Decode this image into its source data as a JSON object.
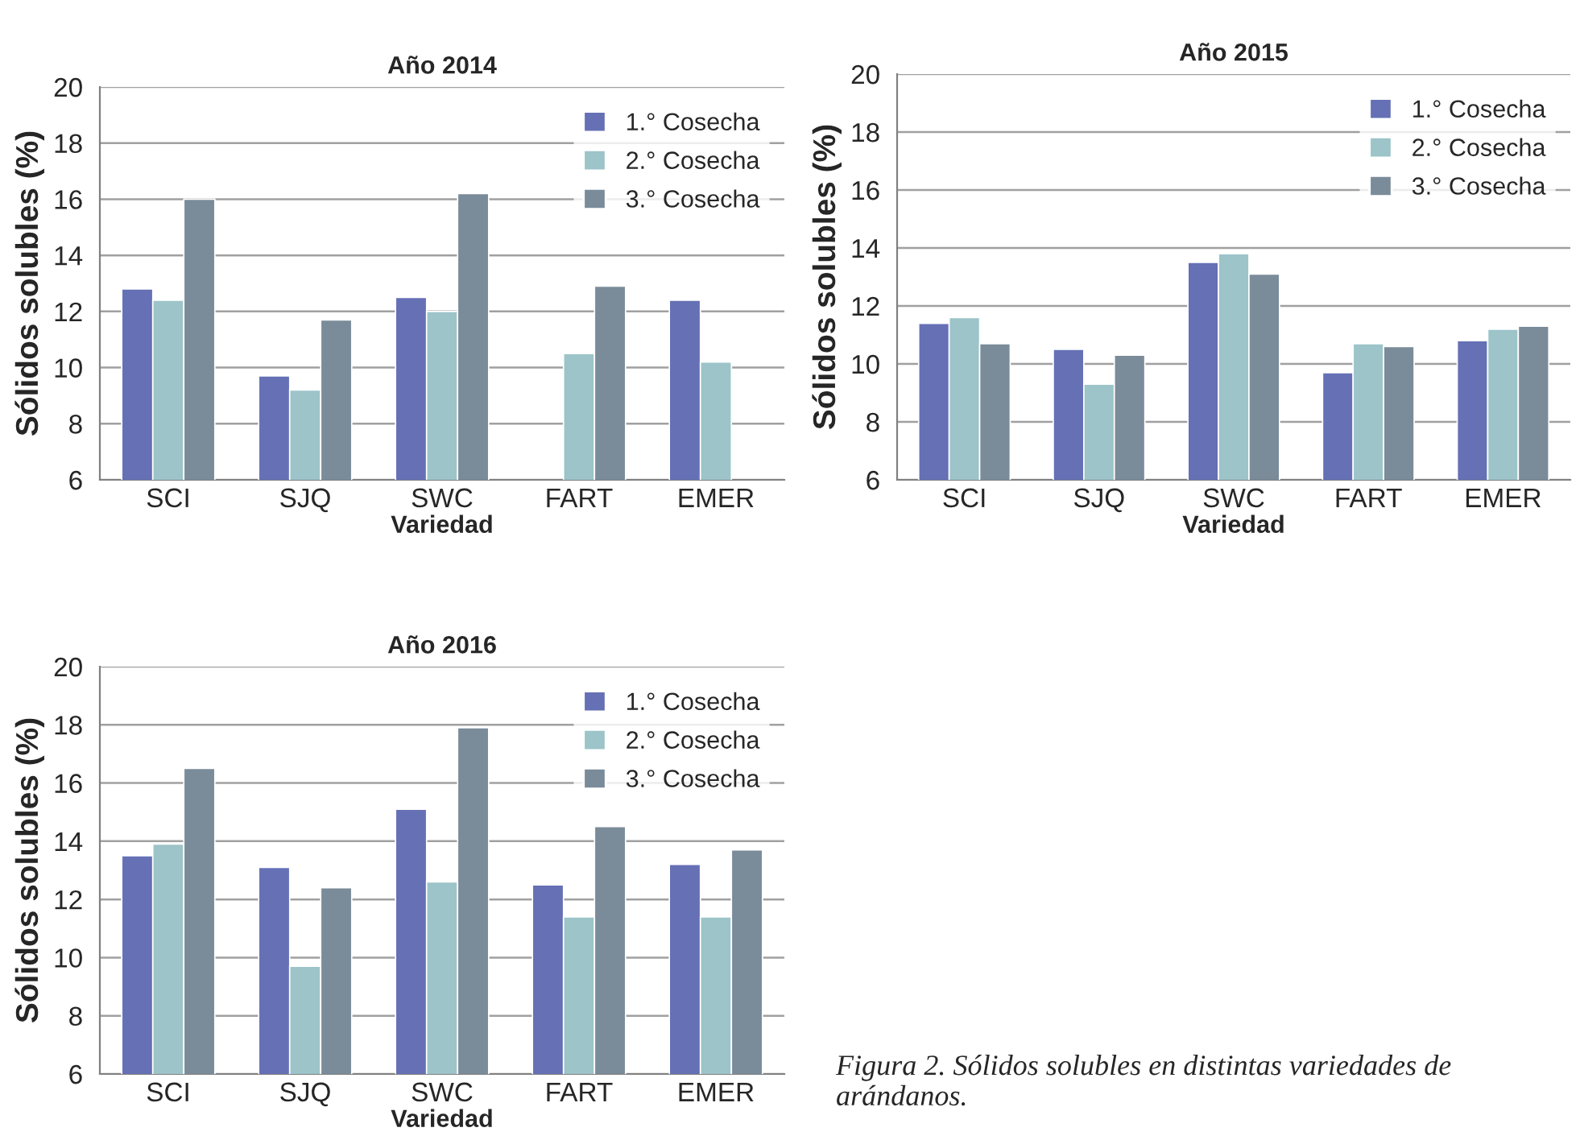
{
  "chart_data": [
    {
      "type": "bar",
      "title": "Año 2014",
      "xlabel": "Variedad",
      "ylabel": "Sólidos solubles (%)",
      "categories": [
        "SCI",
        "SJQ",
        "SWC",
        "FART",
        "EMER"
      ],
      "ylim": [
        6,
        20
      ],
      "yticks": [
        6,
        8,
        10,
        12,
        14,
        16,
        18,
        20
      ],
      "grid": "y",
      "legend": "top right",
      "series": [
        {
          "name": "1.° Cosecha",
          "color": "#6570b5",
          "values": [
            12.8,
            9.7,
            12.5,
            null,
            12.4
          ]
        },
        {
          "name": "2.° Cosecha",
          "color": "#9cc4c9",
          "values": [
            12.4,
            9.2,
            12.0,
            10.5,
            10.2
          ]
        },
        {
          "name": "3.° Cosecha",
          "color": "#7a8b99",
          "values": [
            16.0,
            11.7,
            16.2,
            12.9,
            null
          ]
        }
      ]
    },
    {
      "type": "bar",
      "title": "Año 2015",
      "xlabel": "Variedad",
      "ylabel": "Sólidos solubles (%)",
      "categories": [
        "SCI",
        "SJQ",
        "SWC",
        "FART",
        "EMER"
      ],
      "ylim": [
        6,
        20
      ],
      "yticks": [
        6,
        8,
        10,
        12,
        14,
        16,
        18,
        20
      ],
      "grid": "y",
      "legend": "top right",
      "series": [
        {
          "name": "1.° Cosecha",
          "color": "#6570b5",
          "values": [
            11.4,
            10.5,
            13.5,
            9.7,
            10.8
          ]
        },
        {
          "name": "2.° Cosecha",
          "color": "#9cc4c9",
          "values": [
            11.6,
            9.3,
            13.8,
            10.7,
            11.2
          ]
        },
        {
          "name": "3.° Cosecha",
          "color": "#7a8b99",
          "values": [
            10.7,
            10.3,
            13.1,
            10.6,
            11.3
          ]
        }
      ]
    },
    {
      "type": "bar",
      "title": "Año 2016",
      "xlabel": "Variedad",
      "ylabel": "Sólidos solubles (%)",
      "categories": [
        "SCI",
        "SJQ",
        "SWC",
        "FART",
        "EMER"
      ],
      "ylim": [
        6,
        20
      ],
      "yticks": [
        6,
        8,
        10,
        12,
        14,
        16,
        18,
        20
      ],
      "grid": "y",
      "legend": "top right",
      "annotations": [
        "Figura 2. Sólidos solubles en distintas variedades de arándanos."
      ],
      "series": [
        {
          "name": "1.° Cosecha",
          "color": "#6570b5",
          "values": [
            13.5,
            13.1,
            15.1,
            12.5,
            13.2
          ]
        },
        {
          "name": "2.° Cosecha",
          "color": "#9cc4c9",
          "values": [
            13.9,
            9.7,
            12.6,
            11.4,
            11.4
          ]
        },
        {
          "name": "3.° Cosecha",
          "color": "#7a8b99",
          "values": [
            16.5,
            12.4,
            17.9,
            14.5,
            13.7
          ]
        }
      ]
    }
  ]
}
